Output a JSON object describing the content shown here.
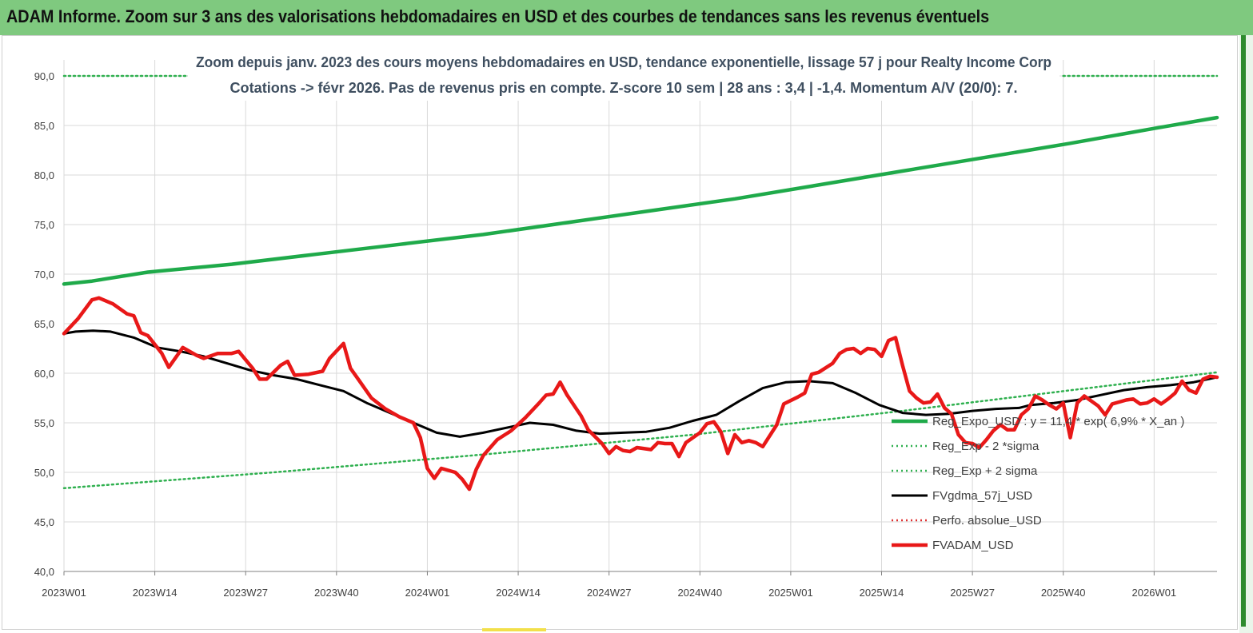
{
  "banner": {
    "title": "ADAM Informe. Zoom sur 3 ans des valorisations hebdomadaires en USD et des courbes de tendances sans les revenus éventuels"
  },
  "chart_data": {
    "type": "line",
    "title": "Zoom depuis janv. 2023 des cours moyens hebdomadaires en USD, tendance exponentielle, lissage 57 j pour Realty Income Corp",
    "subtitle": "Cotations -> févr 2026. Pas de revenus pris en compte. Z-score 10 sem | 28 ans : 3,4 | -1,4. Momentum A/V (20/0): 7.",
    "xlabel": "",
    "ylabel": "",
    "ylim": [
      40,
      90
    ],
    "yticks": [
      "40,0",
      "45,0",
      "50,0",
      "55,0",
      "60,0",
      "65,0",
      "70,0",
      "75,0",
      "80,0",
      "85,0",
      "90,0"
    ],
    "xticks": [
      "2023W01",
      "2023W14",
      "2023W27",
      "2023W40",
      "2024W01",
      "2024W14",
      "2024W27",
      "2024W40",
      "2025W01",
      "2025W14",
      "2025W27",
      "2025W40",
      "2026W01"
    ],
    "x_range_weeks": [
      0,
      165
    ],
    "grid": "vertical",
    "legend_position": "right",
    "series": [
      {
        "name": "Reg_Expo_USD : y = 11,4 * exp( 6,9% *  X_an )",
        "color": "#1faa4a",
        "style": "solid-thick",
        "points": [
          [
            0,
            69.0
          ],
          [
            4,
            69.3
          ],
          [
            12,
            70.2
          ],
          [
            24,
            71.0
          ],
          [
            36,
            72.0
          ],
          [
            48,
            73.0
          ],
          [
            60,
            74.0
          ],
          [
            72,
            75.2
          ],
          [
            84,
            76.4
          ],
          [
            96,
            77.6
          ],
          [
            108,
            79.0
          ],
          [
            120,
            80.4
          ],
          [
            132,
            81.8
          ],
          [
            144,
            83.2
          ],
          [
            156,
            84.7
          ],
          [
            165,
            85.8
          ]
        ]
      },
      {
        "name": "Reg_Exp - 2 *sigma",
        "color": "#2fb04f",
        "style": "dotted",
        "points": [
          [
            0,
            48.4
          ],
          [
            30,
            50.0
          ],
          [
            60,
            51.8
          ],
          [
            90,
            53.8
          ],
          [
            120,
            56.2
          ],
          [
            150,
            58.8
          ],
          [
            165,
            60.1
          ]
        ]
      },
      {
        "name": "Reg_Exp + 2 sigma",
        "color": "#2fb04f",
        "style": "dotted",
        "points": [
          [
            0,
            90.0
          ],
          [
            18,
            90.0
          ]
        ],
        "points_right": [
          [
            143,
            90.0
          ],
          [
            165,
            90.0
          ]
        ]
      },
      {
        "name": "FVgdma_57j_USD",
        "color": "#000000",
        "style": "solid",
        "points": [
          [
            0,
            64.0
          ],
          [
            2,
            64.2
          ],
          [
            5,
            64.3
          ],
          [
            8,
            64.2
          ],
          [
            12,
            63.6
          ],
          [
            16,
            62.6
          ],
          [
            20,
            62.2
          ],
          [
            24,
            61.7
          ],
          [
            28,
            61.0
          ],
          [
            32,
            60.3
          ],
          [
            36,
            59.8
          ],
          [
            40,
            59.4
          ],
          [
            44,
            58.8
          ],
          [
            48,
            58.2
          ],
          [
            52,
            57.0
          ],
          [
            56,
            56.0
          ],
          [
            60,
            55.0
          ],
          [
            64,
            54.0
          ],
          [
            68,
            53.6
          ],
          [
            72,
            54.0
          ],
          [
            76,
            54.5
          ],
          [
            80,
            55.0
          ],
          [
            84,
            54.8
          ],
          [
            88,
            54.2
          ],
          [
            92,
            53.9
          ],
          [
            96,
            54.0
          ],
          [
            100,
            54.1
          ],
          [
            104,
            54.5
          ],
          [
            108,
            55.2
          ],
          [
            112,
            55.8
          ],
          [
            116,
            57.2
          ],
          [
            120,
            58.5
          ],
          [
            124,
            59.1
          ],
          [
            128,
            59.2
          ],
          [
            132,
            59.0
          ],
          [
            136,
            58.0
          ],
          [
            140,
            56.8
          ],
          [
            144,
            56.0
          ],
          [
            148,
            55.8
          ],
          [
            152,
            55.9
          ],
          [
            156,
            56.2
          ],
          [
            160,
            56.4
          ],
          [
            164,
            56.5
          ],
          [
            166,
            56.8
          ],
          [
            170,
            57.0
          ],
          [
            174,
            57.3
          ],
          [
            178,
            57.8
          ],
          [
            182,
            58.3
          ],
          [
            186,
            58.6
          ],
          [
            190,
            58.8
          ],
          [
            194,
            59.1
          ],
          [
            198,
            59.6
          ]
        ],
        "note_x_scale": "weeks"
      },
      {
        "name": "Perfo. absolue_USD",
        "color": "#e03030",
        "style": "dotted",
        "points": []
      },
      {
        "name": "FVADAM_USD",
        "color": "#e81818",
        "style": "solid-thick",
        "points": [
          [
            0,
            64.0
          ],
          [
            2,
            65.5
          ],
          [
            4,
            67.4
          ],
          [
            5,
            67.6
          ],
          [
            7,
            67.0
          ],
          [
            9,
            66.0
          ],
          [
            10,
            65.8
          ],
          [
            11,
            64.1
          ],
          [
            12,
            63.8
          ],
          [
            14,
            62.0
          ],
          [
            15,
            60.6
          ],
          [
            17,
            62.6
          ],
          [
            19,
            61.8
          ],
          [
            20,
            61.5
          ],
          [
            22,
            62.0
          ],
          [
            24,
            62.0
          ],
          [
            25,
            62.2
          ],
          [
            27,
            60.5
          ],
          [
            28,
            59.4
          ],
          [
            29,
            59.4
          ],
          [
            31,
            60.8
          ],
          [
            32,
            61.2
          ],
          [
            33,
            59.8
          ],
          [
            35,
            59.9
          ],
          [
            37,
            60.2
          ],
          [
            38,
            61.5
          ],
          [
            40,
            63.0
          ],
          [
            41,
            60.5
          ],
          [
            42,
            59.5
          ],
          [
            44,
            57.5
          ],
          [
            46,
            56.4
          ],
          [
            48,
            55.6
          ],
          [
            50,
            55.0
          ],
          [
            51,
            53.5
          ],
          [
            52,
            50.4
          ],
          [
            53,
            49.4
          ],
          [
            54,
            50.4
          ],
          [
            56,
            50.0
          ],
          [
            57,
            49.3
          ],
          [
            58,
            48.3
          ],
          [
            59,
            50.3
          ],
          [
            60,
            51.7
          ],
          [
            62,
            53.3
          ],
          [
            64,
            54.2
          ],
          [
            66,
            55.5
          ],
          [
            68,
            57.0
          ],
          [
            69,
            57.8
          ],
          [
            70,
            57.9
          ],
          [
            71,
            59.1
          ],
          [
            72,
            57.8
          ],
          [
            74,
            55.7
          ],
          [
            75,
            54.3
          ],
          [
            77,
            52.9
          ],
          [
            78,
            51.9
          ],
          [
            79,
            52.6
          ],
          [
            80,
            52.2
          ],
          [
            81,
            52.1
          ],
          [
            82,
            52.5
          ],
          [
            84,
            52.3
          ],
          [
            85,
            53.0
          ],
          [
            86,
            52.9
          ],
          [
            87,
            52.9
          ],
          [
            88,
            51.6
          ],
          [
            89,
            53.0
          ],
          [
            91,
            54.0
          ],
          [
            92,
            54.9
          ],
          [
            93,
            55.1
          ],
          [
            94,
            54.1
          ],
          [
            95,
            51.9
          ],
          [
            96,
            53.8
          ],
          [
            97,
            53.0
          ],
          [
            98,
            53.2
          ],
          [
            99,
            53.0
          ],
          [
            100,
            52.6
          ],
          [
            102,
            54.8
          ],
          [
            103,
            56.9
          ],
          [
            105,
            57.6
          ],
          [
            106,
            58.0
          ],
          [
            107,
            59.9
          ],
          [
            108,
            60.1
          ],
          [
            110,
            61.0
          ],
          [
            111,
            62.0
          ],
          [
            112,
            62.4
          ],
          [
            113,
            62.5
          ],
          [
            114,
            62.0
          ],
          [
            115,
            62.5
          ],
          [
            116,
            62.4
          ],
          [
            117,
            61.7
          ],
          [
            118,
            63.3
          ],
          [
            119,
            63.6
          ],
          [
            120,
            60.8
          ],
          [
            121,
            58.2
          ],
          [
            122,
            57.5
          ],
          [
            123,
            57.0
          ],
          [
            124,
            57.1
          ],
          [
            125,
            57.9
          ],
          [
            126,
            56.5
          ],
          [
            127,
            55.9
          ],
          [
            128,
            53.8
          ],
          [
            129,
            53.0
          ],
          [
            130,
            52.9
          ],
          [
            131,
            52.5
          ],
          [
            132,
            53.3
          ],
          [
            133,
            54.2
          ],
          [
            134,
            54.8
          ],
          [
            135,
            54.3
          ],
          [
            136,
            54.3
          ],
          [
            137,
            55.8
          ],
          [
            138,
            56.4
          ],
          [
            139,
            57.7
          ],
          [
            140,
            57.3
          ],
          [
            141,
            56.8
          ],
          [
            142,
            56.4
          ],
          [
            143,
            57.0
          ],
          [
            144,
            53.5
          ],
          [
            145,
            57.0
          ],
          [
            146,
            57.7
          ],
          [
            147,
            57.2
          ],
          [
            148,
            56.7
          ],
          [
            149,
            55.8
          ],
          [
            150,
            56.9
          ],
          [
            151,
            57.1
          ],
          [
            152,
            57.3
          ],
          [
            153,
            57.4
          ],
          [
            154,
            56.9
          ],
          [
            155,
            57.0
          ],
          [
            156,
            57.4
          ],
          [
            157,
            56.9
          ],
          [
            158,
            57.4
          ],
          [
            159,
            58.0
          ],
          [
            160,
            59.2
          ],
          [
            161,
            58.3
          ],
          [
            162,
            58.0
          ],
          [
            163,
            59.4
          ],
          [
            164,
            59.7
          ],
          [
            165,
            59.6
          ]
        ],
        "note_x_scale": "weeks"
      }
    ]
  },
  "legend": {
    "items": [
      {
        "label": "Reg_Expo_USD : y = 11,4 * exp( 6,9% *  X_an )",
        "color": "#1faa4a",
        "style": "solid-thick"
      },
      {
        "label": "Reg_Exp - 2 *sigma",
        "color": "#2fb04f",
        "style": "dotted"
      },
      {
        "label": "Reg_Exp + 2 sigma",
        "color": "#2fb04f",
        "style": "dotted"
      },
      {
        "label": "FVgdma_57j_USD",
        "color": "#000000",
        "style": "solid"
      },
      {
        "label": "Perfo. absolue_USD",
        "color": "#e03030",
        "style": "dotted"
      },
      {
        "label": "FVADAM_USD",
        "color": "#e81818",
        "style": "solid-thick"
      }
    ]
  }
}
